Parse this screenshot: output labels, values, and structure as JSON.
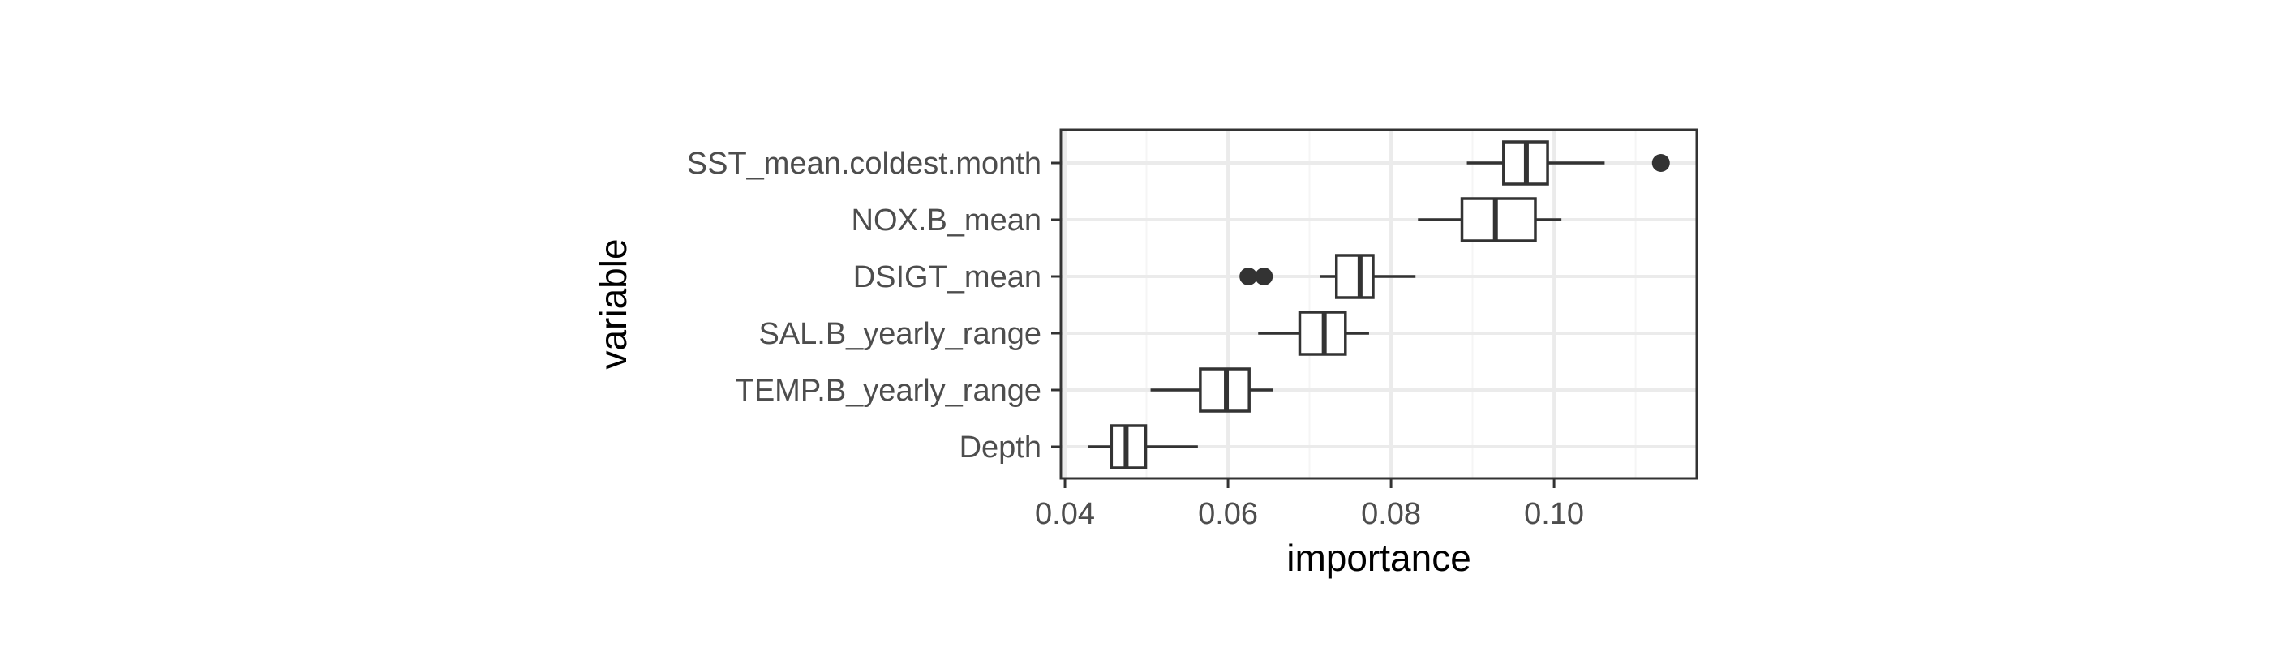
{
  "chart_data": {
    "type": "boxplot",
    "orientation": "horizontal",
    "xlabel": "importance",
    "ylabel": "variable",
    "xlim": [
      0.0395,
      0.1175
    ],
    "x_ticks": [
      0.04,
      0.06,
      0.08,
      0.1
    ],
    "x_tick_labels": [
      "0.04",
      "0.06",
      "0.08",
      "0.10"
    ],
    "grid": true,
    "categories": [
      "SST_mean.coldest.month",
      "NOX.B_mean",
      "DSIGT_mean",
      "SAL.B_yearly_range",
      "TEMP.B_yearly_range",
      "Depth"
    ],
    "boxes": [
      {
        "variable": "SST_mean.coldest.month",
        "whisker_low": 0.0893,
        "q1": 0.0938,
        "median": 0.0966,
        "q3": 0.0992,
        "whisker_high": 0.1062,
        "outliers": [
          0.1131
        ]
      },
      {
        "variable": "NOX.B_mean",
        "whisker_low": 0.0833,
        "q1": 0.0887,
        "median": 0.0928,
        "q3": 0.0977,
        "whisker_high": 0.1009,
        "outliers": []
      },
      {
        "variable": "DSIGT_mean",
        "whisker_low": 0.0713,
        "q1": 0.0733,
        "median": 0.0762,
        "q3": 0.0778,
        "whisker_high": 0.083,
        "outliers": [
          0.0625,
          0.0644
        ]
      },
      {
        "variable": "SAL.B_yearly_range",
        "whisker_low": 0.0637,
        "q1": 0.0688,
        "median": 0.0718,
        "q3": 0.0744,
        "whisker_high": 0.0773,
        "outliers": []
      },
      {
        "variable": "TEMP.B_yearly_range",
        "whisker_low": 0.0505,
        "q1": 0.0566,
        "median": 0.0598,
        "q3": 0.0626,
        "whisker_high": 0.0655,
        "outliers": []
      },
      {
        "variable": "Depth",
        "whisker_low": 0.0428,
        "q1": 0.0457,
        "median": 0.0475,
        "q3": 0.0499,
        "whisker_high": 0.0563,
        "outliers": []
      }
    ],
    "colors": {
      "panel_border": "#333333",
      "grid_major": "#ebebeb",
      "grid_minor": "#f5f5f5",
      "box_stroke": "#333333",
      "box_fill": "#ffffff",
      "outlier": "#333333",
      "tick_label": "#4d4d4d",
      "axis_title": "#000000"
    }
  }
}
